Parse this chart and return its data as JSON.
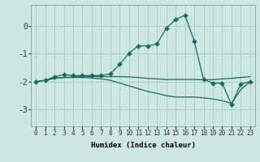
{
  "xlabel": "Humidex (Indice chaleur)",
  "bg_color": "#cce8e0",
  "grid_color": "#aaccc4",
  "line_color": "#1a6b60",
  "xlim": [
    -0.5,
    23.5
  ],
  "ylim": [
    -3.6,
    0.75
  ],
  "yticks": [
    -3,
    -2,
    -1,
    0
  ],
  "ytick_labels": [
    "-3",
    "-2",
    "-1",
    "0"
  ],
  "xticks": [
    0,
    1,
    2,
    3,
    4,
    5,
    6,
    7,
    8,
    9,
    10,
    11,
    12,
    13,
    14,
    15,
    16,
    17,
    18,
    19,
    20,
    21,
    22,
    23
  ],
  "line1_x": [
    0,
    1,
    2,
    3,
    4,
    5,
    6,
    7,
    8,
    9,
    10,
    11,
    12,
    13,
    14,
    15,
    16,
    17,
    18,
    19,
    20,
    21,
    22,
    23
  ],
  "line1_y": [
    -2.0,
    -1.95,
    -1.82,
    -1.75,
    -1.78,
    -1.78,
    -1.78,
    -1.78,
    -1.72,
    -1.38,
    -0.98,
    -0.72,
    -0.72,
    -0.65,
    -0.08,
    0.22,
    0.38,
    -0.55,
    -1.92,
    -2.05,
    -2.05,
    -2.82,
    -2.08,
    -2.0
  ],
  "line2_x": [
    0,
    1,
    2,
    3,
    4,
    5,
    6,
    7,
    8,
    9,
    10,
    11,
    12,
    13,
    14,
    15,
    16,
    17,
    18,
    19,
    20,
    21,
    22,
    23
  ],
  "line2_y": [
    -2.0,
    -1.95,
    -1.88,
    -1.85,
    -1.83,
    -1.82,
    -1.82,
    -1.82,
    -1.82,
    -1.82,
    -1.83,
    -1.85,
    -1.88,
    -1.9,
    -1.92,
    -1.92,
    -1.92,
    -1.92,
    -1.93,
    -1.93,
    -1.9,
    -1.88,
    -1.85,
    -1.82
  ],
  "line3_x": [
    0,
    1,
    2,
    3,
    4,
    5,
    6,
    7,
    8,
    9,
    10,
    11,
    12,
    13,
    14,
    15,
    16,
    17,
    18,
    19,
    20,
    21,
    22,
    23
  ],
  "line3_y": [
    -2.0,
    -1.95,
    -1.88,
    -1.85,
    -1.85,
    -1.85,
    -1.87,
    -1.9,
    -1.95,
    -2.05,
    -2.15,
    -2.25,
    -2.35,
    -2.42,
    -2.5,
    -2.55,
    -2.55,
    -2.55,
    -2.58,
    -2.62,
    -2.68,
    -2.78,
    -2.28,
    -2.0
  ],
  "markersize": 3,
  "linewidth": 0.9,
  "xlabel_fontsize": 6.5,
  "tick_fontsize": 5.5,
  "ytick_fontsize": 7.0
}
